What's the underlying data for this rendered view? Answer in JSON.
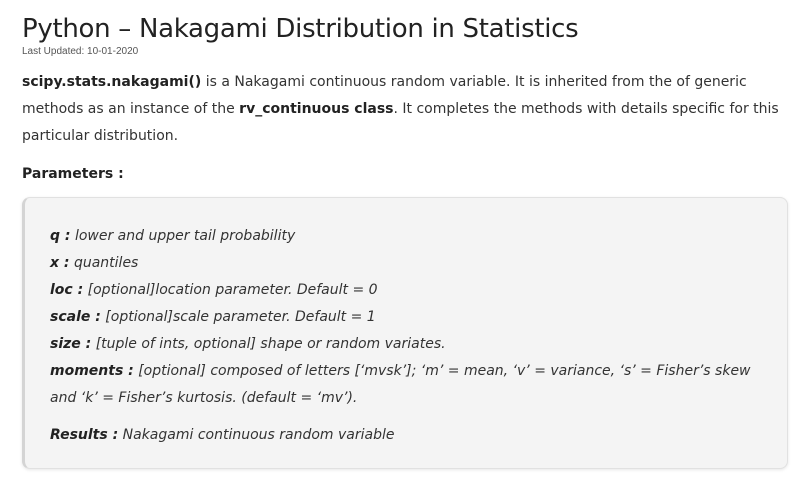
{
  "article": {
    "title": "Python – Nakagami Distribution in Statistics",
    "last_updated": "Last Updated: 10-01-2020",
    "intro": {
      "func_name": "scipy.stats.nakagami()",
      "text_1": " is a Nakagami continuous random variable. It is inherited from the of generic methods as an instance of the ",
      "class_name": "rv_continuous class",
      "text_2": ". It completes the methods with details specific for this particular distribution."
    },
    "parameters_heading": "Parameters :",
    "parameters": [
      {
        "name": "q :",
        "desc": " lower and upper tail probability"
      },
      {
        "name": "x :",
        "desc": " quantiles"
      },
      {
        "name": "loc :",
        "desc": " [optional]location parameter. Default = 0"
      },
      {
        "name": "scale :",
        "desc": " [optional]scale parameter. Default = 1"
      },
      {
        "name": "size :",
        "desc": " [tuple of ints, optional] shape or random variates."
      },
      {
        "name": "moments :",
        "desc": " [optional] composed of letters [‘mvsk’]; ‘m’ = mean, ‘v’ = variance, ‘s’ = Fisher’s skew and ‘k’ = Fisher’s kurtosis. (default = ‘mv’)."
      }
    ],
    "results": {
      "name": "Results :",
      "desc": " Nakagami continuous random variable"
    }
  }
}
